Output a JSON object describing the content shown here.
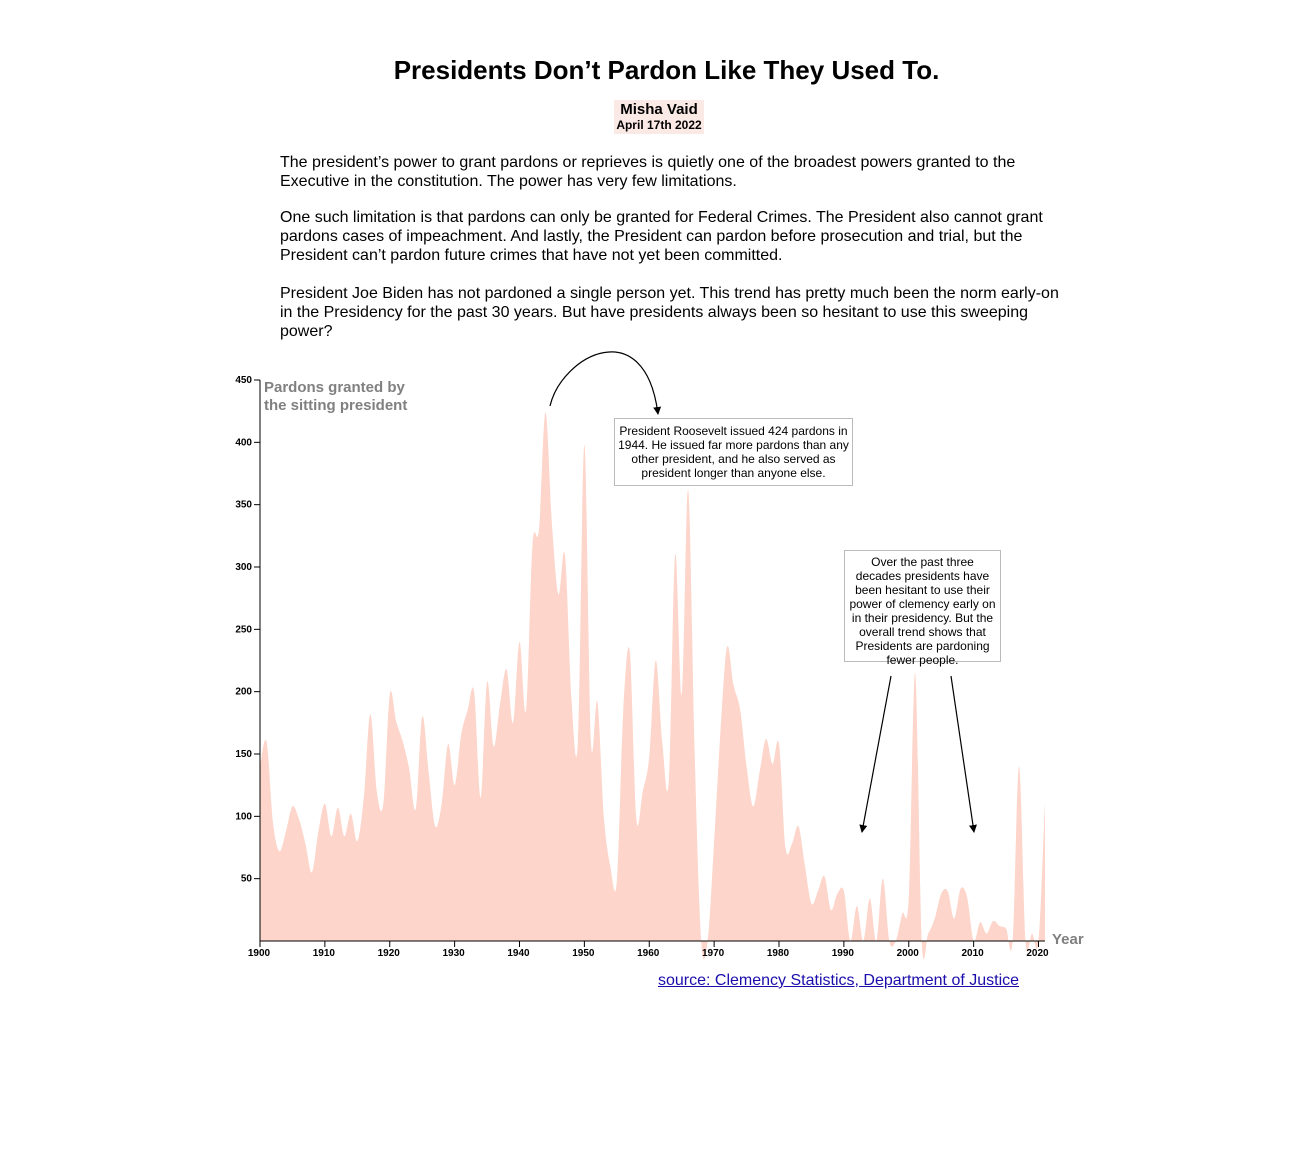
{
  "article": {
    "title": "Presidents Don’t Pardon Like They Used To.",
    "author": "Misha Vaid",
    "date": "April 17th 2022",
    "paragraphs": [
      "The president’s power to grant pardons or reprieves is quietly one of the broadest powers granted to the Executive in the constitution. The power has very few limitations.",
      "One such limitation is that pardons can only be granted for Federal Crimes. The President also cannot grant pardons cases of impeachment. And lastly, the President can pardon before prosecution and trial, but the President can’t pardon future crimes that have not yet been committed.",
      "President Joe Biden has not pardoned a single person yet. This trend has pretty much been the norm early-on in the Presidency for the past 30 years. But have presidents always been so hesitant to use this sweeping power?"
    ],
    "source_label": "source: Clemency Statistics, Department of Justice"
  },
  "chart_data": {
    "type": "area",
    "ylabel_lines": [
      "Pardons granted by",
      "the sitting president"
    ],
    "xlabel": "Year",
    "xlim": [
      1900,
      2021
    ],
    "ylim": [
      0,
      450
    ],
    "x_ticks": [
      1900,
      1910,
      1920,
      1930,
      1940,
      1950,
      1960,
      1970,
      1980,
      1990,
      2000,
      2010,
      2020
    ],
    "y_ticks": [
      50,
      100,
      150,
      200,
      250,
      300,
      350,
      400,
      450
    ],
    "fill_color": "#fdd5ca",
    "annotations": [
      "President Roosevelt issued 424 pardons in 1944. He issued far more pardons than any other president, and he also served as president longer than anyone else.",
      "Over the past three decades presidents have been hesitant to use their power of clemency early on in their presidency. But the overall trend shows that Presidents are pardoning fewer people."
    ],
    "x": [
      1900,
      1901,
      1902,
      1903,
      1904,
      1905,
      1906,
      1907,
      1908,
      1909,
      1910,
      1911,
      1912,
      1913,
      1914,
      1915,
      1916,
      1917,
      1918,
      1919,
      1920,
      1921,
      1922,
      1923,
      1924,
      1925,
      1926,
      1927,
      1928,
      1929,
      1930,
      1931,
      1932,
      1933,
      1934,
      1935,
      1936,
      1937,
      1938,
      1939,
      1940,
      1941,
      1942,
      1943,
      1944,
      1945,
      1946,
      1947,
      1948,
      1949,
      1950,
      1951,
      1952,
      1953,
      1954,
      1955,
      1956,
      1957,
      1958,
      1959,
      1960,
      1961,
      1962,
      1963,
      1964,
      1965,
      1966,
      1967,
      1968,
      1969,
      1970,
      1971,
      1972,
      1973,
      1974,
      1975,
      1976,
      1977,
      1978,
      1979,
      1980,
      1981,
      1982,
      1983,
      1984,
      1985,
      1986,
      1987,
      1988,
      1989,
      1990,
      1991,
      1992,
      1993,
      1994,
      1995,
      1996,
      1997,
      1998,
      1999,
      2000,
      2001,
      2002,
      2003,
      2004,
      2005,
      2006,
      2007,
      2008,
      2009,
      2010,
      2011,
      2012,
      2013,
      2014,
      2015,
      2016,
      2017,
      2018,
      2019,
      2020,
      2021
    ],
    "values": [
      140,
      160,
      95,
      72,
      88,
      108,
      98,
      78,
      55,
      88,
      110,
      84,
      107,
      84,
      102,
      80,
      115,
      182,
      120,
      110,
      198,
      176,
      160,
      138,
      106,
      180,
      135,
      92,
      110,
      158,
      125,
      165,
      185,
      200,
      115,
      208,
      156,
      190,
      218,
      175,
      240,
      185,
      318,
      330,
      424,
      335,
      278,
      310,
      195,
      160,
      398,
      160,
      192,
      100,
      60,
      48,
      185,
      232,
      98,
      120,
      148,
      225,
      160,
      128,
      310,
      198,
      362,
      150,
      0,
      0,
      80,
      170,
      236,
      205,
      186,
      140,
      108,
      135,
      162,
      142,
      158,
      75,
      78,
      92,
      60,
      30,
      40,
      52,
      25,
      38,
      40,
      0,
      28,
      0,
      34,
      0,
      50,
      0,
      0,
      22,
      35,
      215,
      0,
      6,
      18,
      38,
      40,
      18,
      42,
      35,
      0,
      15,
      6,
      16,
      12,
      10,
      0,
      140,
      0,
      6,
      0,
      112
    ]
  }
}
